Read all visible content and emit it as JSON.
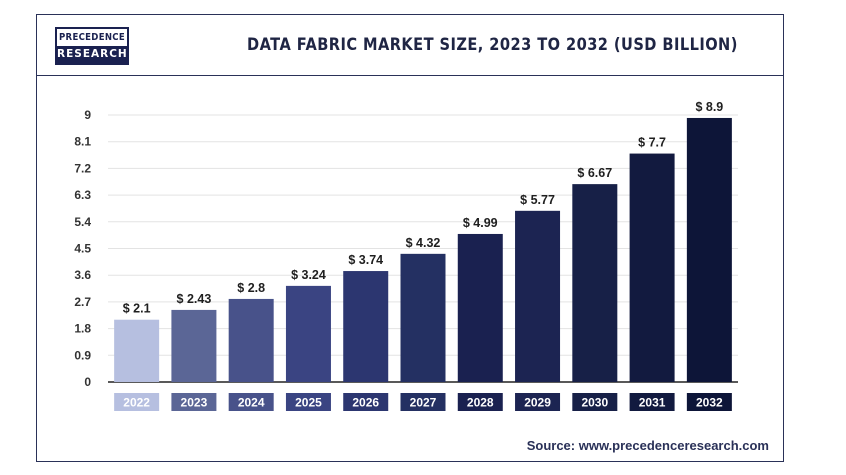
{
  "logo": {
    "top": "PRECEDENCE",
    "bottom": "RESEARCH"
  },
  "title": "DATA FABRIC MARKET SIZE, 2023 TO 2032 (USD BILLION)",
  "source": "Source: www.precedenceresearch.com",
  "chart_data": {
    "type": "bar",
    "title": "DATA FABRIC MARKET SIZE, 2023 TO 2032 (USD BILLION)",
    "xlabel": "",
    "ylabel": "",
    "categories": [
      "2022",
      "2023",
      "2024",
      "2025",
      "2026",
      "2027",
      "2028",
      "2029",
      "2030",
      "2031",
      "2032"
    ],
    "values": [
      2.1,
      2.43,
      2.8,
      3.24,
      3.74,
      4.32,
      4.99,
      5.77,
      6.67,
      7.7,
      8.9
    ],
    "value_labels": [
      "$ 2.1",
      "$ 2.43",
      "$ 2.8",
      "$ 3.24",
      "$ 3.74",
      "$ 4.32",
      "$ 4.99",
      "$ 5.77",
      "$ 6.67",
      "$ 7.7",
      "$ 8.9"
    ],
    "yticks": [
      "0",
      "0.9",
      "1.8",
      "2.7",
      "3.6",
      "4.5",
      "5.4",
      "6.3",
      "7.2",
      "8.1",
      "9"
    ],
    "ylim": [
      0,
      9
    ],
    "grid": true,
    "legend": "none",
    "colors": [
      "#b6bfe0",
      "#5b6696",
      "#48528a",
      "#3a4482",
      "#2c3670",
      "#243062",
      "#1a2150",
      "#1c2452",
      "#172047",
      "#121a3f",
      "#0d1538"
    ]
  }
}
